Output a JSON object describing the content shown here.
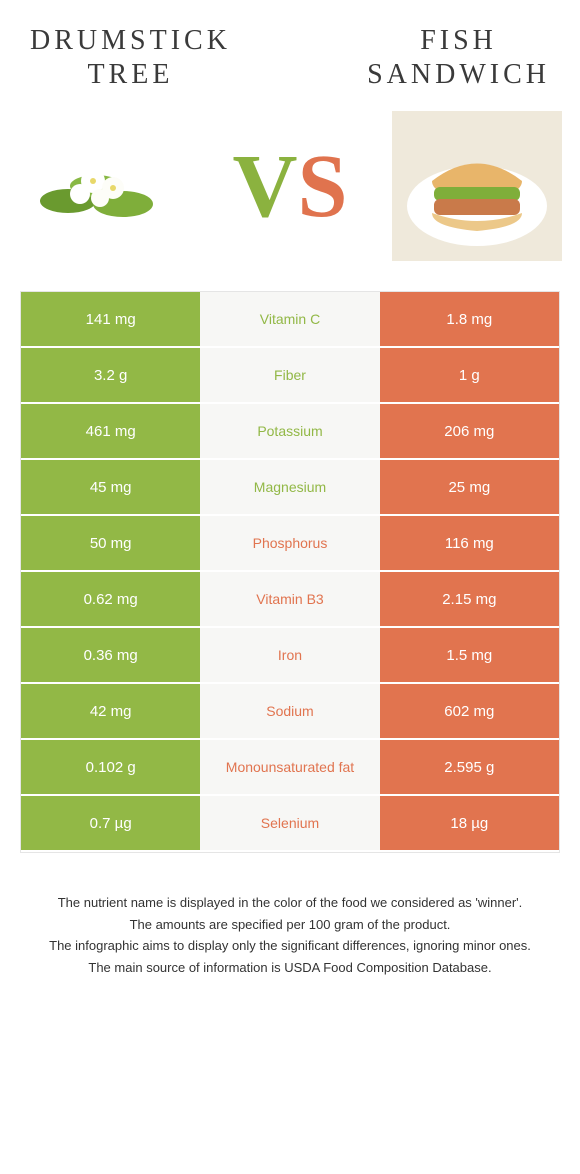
{
  "colors": {
    "left": "#92b846",
    "right": "#e1744f",
    "mid_bg": "#f7f7f5",
    "text_dark": "#3a3a3a"
  },
  "header": {
    "left_title": "DRUMSTICK\nTREE",
    "right_title": "FISH\nSANDWICH",
    "vs_v": "V",
    "vs_s": "S"
  },
  "rows": [
    {
      "left": "141 mg",
      "label": "Vitamin C",
      "right": "1.8 mg",
      "winner": "left"
    },
    {
      "left": "3.2 g",
      "label": "Fiber",
      "right": "1 g",
      "winner": "left"
    },
    {
      "left": "461 mg",
      "label": "Potassium",
      "right": "206 mg",
      "winner": "left"
    },
    {
      "left": "45 mg",
      "label": "Magnesium",
      "right": "25 mg",
      "winner": "left"
    },
    {
      "left": "50 mg",
      "label": "Phosphorus",
      "right": "116 mg",
      "winner": "right"
    },
    {
      "left": "0.62 mg",
      "label": "Vitamin B3",
      "right": "2.15 mg",
      "winner": "right"
    },
    {
      "left": "0.36 mg",
      "label": "Iron",
      "right": "1.5 mg",
      "winner": "right"
    },
    {
      "left": "42 mg",
      "label": "Sodium",
      "right": "602 mg",
      "winner": "right"
    },
    {
      "left": "0.102 g",
      "label": "Monounsaturated fat",
      "right": "2.595 g",
      "winner": "right"
    },
    {
      "left": "0.7 µg",
      "label": "Selenium",
      "right": "18 µg",
      "winner": "right"
    }
  ],
  "footer": {
    "line1": "The nutrient name is displayed in the color of the food we considered as 'winner'.",
    "line2": "The amounts are specified per 100 gram of the product.",
    "line3": "The infographic aims to display only the significant differences, ignoring minor ones.",
    "line4": "The main source of information is USDA Food Composition Database."
  }
}
